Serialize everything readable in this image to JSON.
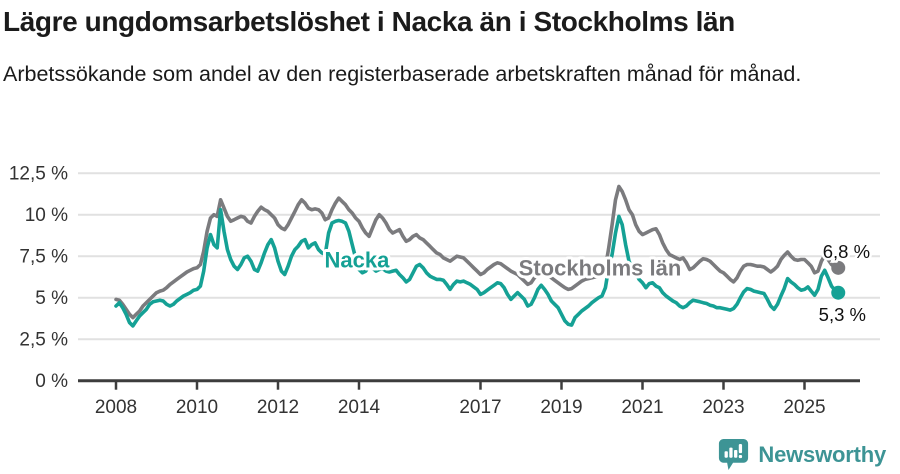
{
  "title": "Lägre ungdomsarbetslöshet i Nacka än i Stockholms län",
  "subtitle": "Arbetssökande som andel av den registerbaserade arbetskraften månad för månad.",
  "footer": {
    "brand": "Newsworthy",
    "brand_color": "#3d9495"
  },
  "chart_data": {
    "type": "line",
    "title": "Lägre ungdomsarbetslöshet i Nacka än i Stockholms län",
    "subtitle": "Arbetssökande som andel av den registerbaserade arbetskraften månad för månad.",
    "xlabel": "",
    "ylabel": "",
    "ylim": [
      0,
      12.5
    ],
    "xlim": [
      2007.9,
      2026.2
    ],
    "grid": "horizontal",
    "legend_position": "inline-labels",
    "x_ticks": [
      {
        "value": 2008,
        "label": "2008"
      },
      {
        "value": 2010,
        "label": "2010"
      },
      {
        "value": 2012,
        "label": "2012"
      },
      {
        "value": 2014,
        "label": "2014"
      },
      {
        "value": 2017,
        "label": "2017"
      },
      {
        "value": 2019,
        "label": "2019"
      },
      {
        "value": 2021,
        "label": "2021"
      },
      {
        "value": 2023,
        "label": "2023"
      },
      {
        "value": 2025,
        "label": "2025"
      }
    ],
    "y_ticks": [
      {
        "value": 0,
        "label": "0 %"
      },
      {
        "value": 2.5,
        "label": "2,5 %"
      },
      {
        "value": 5,
        "label": "5 %"
      },
      {
        "value": 7.5,
        "label": "7,5 %"
      },
      {
        "value": 10,
        "label": "10 %"
      },
      {
        "value": 12.5,
        "label": "12,5 %"
      }
    ],
    "x_start": 2008.0,
    "x_step": 0.08333333,
    "series": [
      {
        "name": "Stockholms län",
        "color": "#7b7b7e",
        "end_label": "6,8 %",
        "end_dot": true,
        "values": [
          4.9,
          4.85,
          4.6,
          4.3,
          4.0,
          3.8,
          4.0,
          4.2,
          4.5,
          4.7,
          4.9,
          5.1,
          5.3,
          5.4,
          5.45,
          5.6,
          5.8,
          5.95,
          6.1,
          6.25,
          6.4,
          6.55,
          6.65,
          6.75,
          6.8,
          7.0,
          7.8,
          9.0,
          9.8,
          10.0,
          9.9,
          10.9,
          10.4,
          9.9,
          9.6,
          9.7,
          9.8,
          9.9,
          9.85,
          9.6,
          9.5,
          9.9,
          10.2,
          10.45,
          10.3,
          10.2,
          10.0,
          9.8,
          9.4,
          9.2,
          9.1,
          9.4,
          9.8,
          10.2,
          10.6,
          10.9,
          10.7,
          10.4,
          10.3,
          10.35,
          10.3,
          10.1,
          9.7,
          9.8,
          10.3,
          10.7,
          11.0,
          10.8,
          10.6,
          10.3,
          10.1,
          9.8,
          9.6,
          9.2,
          8.9,
          8.7,
          9.2,
          9.7,
          10.0,
          9.8,
          9.5,
          9.1,
          8.9,
          9.0,
          9.1,
          8.7,
          8.4,
          8.5,
          8.7,
          8.8,
          8.6,
          8.5,
          8.3,
          8.1,
          7.9,
          7.7,
          7.6,
          7.4,
          7.3,
          7.2,
          7.35,
          7.5,
          7.45,
          7.4,
          7.2,
          7.0,
          6.8,
          6.6,
          6.4,
          6.5,
          6.7,
          6.85,
          7.0,
          7.1,
          7.05,
          6.9,
          6.75,
          6.6,
          6.5,
          6.4,
          6.2,
          6.0,
          5.8,
          5.9,
          6.2,
          6.4,
          6.5,
          6.45,
          6.35,
          6.2,
          6.05,
          5.9,
          5.75,
          5.6,
          5.5,
          5.55,
          5.7,
          5.85,
          6.0,
          6.1,
          6.15,
          6.2,
          6.25,
          6.3,
          6.4,
          6.8,
          8.0,
          9.4,
          10.9,
          11.7,
          11.4,
          10.9,
          10.3,
          10.0,
          9.4,
          9.0,
          8.8,
          8.9,
          9.0,
          9.1,
          9.15,
          8.8,
          8.3,
          7.9,
          7.6,
          7.5,
          7.4,
          7.3,
          7.4,
          7.1,
          6.7,
          6.8,
          7.0,
          7.2,
          7.35,
          7.3,
          7.2,
          7.0,
          6.8,
          6.6,
          6.5,
          6.3,
          6.1,
          5.95,
          6.2,
          6.6,
          6.9,
          7.0,
          7.0,
          6.95,
          6.9,
          6.9,
          6.85,
          6.7,
          6.55,
          6.7,
          6.9,
          7.3,
          7.55,
          7.75,
          7.5,
          7.3,
          7.25,
          7.3,
          7.3,
          7.1,
          6.9,
          6.5,
          6.6,
          7.2,
          7.55,
          7.3,
          7.0,
          6.85,
          6.8
        ]
      },
      {
        "name": "Nacka",
        "color": "#15a195",
        "end_label": "5,3 %",
        "end_dot": true,
        "values": [
          4.5,
          4.7,
          4.4,
          4.0,
          3.5,
          3.3,
          3.6,
          3.9,
          4.1,
          4.3,
          4.6,
          4.75,
          4.8,
          4.85,
          4.8,
          4.6,
          4.5,
          4.6,
          4.8,
          4.95,
          5.1,
          5.2,
          5.3,
          5.45,
          5.5,
          5.7,
          6.6,
          8.0,
          8.8,
          8.2,
          8.0,
          10.3,
          9.0,
          7.9,
          7.3,
          6.9,
          6.7,
          7.0,
          7.4,
          7.5,
          7.2,
          6.7,
          6.6,
          7.1,
          7.7,
          8.2,
          8.5,
          8.0,
          7.2,
          6.6,
          6.4,
          6.9,
          7.5,
          7.9,
          8.1,
          8.4,
          8.5,
          8.0,
          8.2,
          8.3,
          7.9,
          7.7,
          7.6,
          8.9,
          9.5,
          9.6,
          9.65,
          9.6,
          9.5,
          9.0,
          8.2,
          7.4,
          6.7,
          6.5,
          6.6,
          6.9,
          6.8,
          6.6,
          6.7,
          6.75,
          6.6,
          6.55,
          6.6,
          6.65,
          6.4,
          6.2,
          5.95,
          6.1,
          6.5,
          6.9,
          7.0,
          6.8,
          6.5,
          6.3,
          6.2,
          6.1,
          6.1,
          6.05,
          5.8,
          5.5,
          5.8,
          6.0,
          5.95,
          6.0,
          5.9,
          5.8,
          5.65,
          5.5,
          5.2,
          5.3,
          5.45,
          5.6,
          5.75,
          5.9,
          5.85,
          5.6,
          5.2,
          4.9,
          5.1,
          5.3,
          5.1,
          4.9,
          4.5,
          4.6,
          5.0,
          5.5,
          5.75,
          5.5,
          5.2,
          4.8,
          4.6,
          4.4,
          4.0,
          3.6,
          3.4,
          3.35,
          3.8,
          4.0,
          4.2,
          4.35,
          4.5,
          4.7,
          4.85,
          5.0,
          5.1,
          5.6,
          6.8,
          7.6,
          8.9,
          9.9,
          9.4,
          8.2,
          7.2,
          6.8,
          6.5,
          6.1,
          5.9,
          5.6,
          5.85,
          5.9,
          5.7,
          5.6,
          5.3,
          5.1,
          4.95,
          4.8,
          4.7,
          4.5,
          4.4,
          4.5,
          4.7,
          4.85,
          4.8,
          4.75,
          4.7,
          4.65,
          4.55,
          4.5,
          4.4,
          4.4,
          4.35,
          4.3,
          4.25,
          4.35,
          4.6,
          5.0,
          5.35,
          5.55,
          5.5,
          5.4,
          5.35,
          5.3,
          5.25,
          4.9,
          4.5,
          4.3,
          4.6,
          5.1,
          5.55,
          6.15,
          5.95,
          5.8,
          5.6,
          5.45,
          5.5,
          5.65,
          5.4,
          5.15,
          5.5,
          6.3,
          6.65,
          6.2,
          5.7,
          5.45,
          5.3
        ]
      }
    ],
    "series_labels": [
      {
        "text": "Nacka",
        "x": 2013.95,
        "y": 7.25,
        "color": "#15a195"
      },
      {
        "text": "Stockholms län",
        "x": 2019.95,
        "y": 6.75,
        "color": "#7b7b7e"
      }
    ],
    "end_value_labels": [
      {
        "text": "6,8 %",
        "x": 2025.45,
        "y": 7.75
      },
      {
        "text": "5,3 %",
        "x": 2025.35,
        "y": 3.95
      }
    ],
    "leader_line": {
      "x1": 2025.62,
      "y1": 7.5,
      "x2": 2025.85,
      "y2": 7.0,
      "color": "#7b7b7e"
    }
  }
}
